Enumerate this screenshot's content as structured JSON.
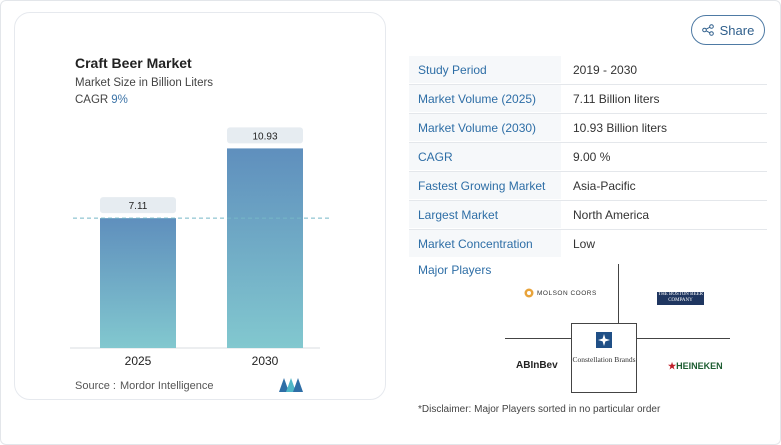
{
  "share": {
    "label": "Share",
    "icon": "share-icon"
  },
  "chart_card": {
    "title": "Craft Beer Market",
    "subtitle": "Market Size in Billion Liters",
    "cagr_label": "CAGR",
    "cagr_value": "9%",
    "source_label": "Source :",
    "source_name": "Mordor Intelligence"
  },
  "chart_data": {
    "type": "bar",
    "categories": [
      "2025",
      "2030"
    ],
    "values": [
      7.11,
      10.93
    ],
    "value_labels": [
      "7.11",
      "10.93"
    ],
    "title": "Craft Beer Market",
    "subtitle": "Market Size in Billion Liters",
    "ylim": [
      0,
      11.5
    ],
    "reference_line": 7.11,
    "grid": false,
    "colors": {
      "bar_top": "#5f8fbd",
      "bar_bottom": "#82c8cf",
      "label_bg": "#e6ecf1",
      "ref_line": "#76b8c8"
    }
  },
  "info_table": [
    {
      "key": "Study Period",
      "value": "2019 - 2030"
    },
    {
      "key": "Market Volume (2025)",
      "value": "7.11 Billion liters"
    },
    {
      "key": "Market Volume (2030)",
      "value": "10.93 Billion liters"
    },
    {
      "key": "CAGR",
      "value": "9.00 %"
    },
    {
      "key": "Fastest Growing Market",
      "value": "Asia-Pacific"
    },
    {
      "key": "Largest Market",
      "value": "North America"
    },
    {
      "key": "Market Concentration",
      "value": "Low"
    }
  ],
  "major_players": {
    "label": "Major Players",
    "players": [
      {
        "name": "Molson Coors",
        "logo_text": "MOLSON COORS"
      },
      {
        "name": "The Boston Beer Company",
        "logo_text": "THE BOSTON BEER COMPANY"
      },
      {
        "name": "AB InBev",
        "logo_text": "ABInBev"
      },
      {
        "name": "Constellation Brands",
        "logo_text": "Constellation Brands"
      },
      {
        "name": "Heineken",
        "logo_text": "HEINEKEN"
      }
    ]
  },
  "disclaimer": "*Disclaimer: Major Players sorted in no particular order"
}
